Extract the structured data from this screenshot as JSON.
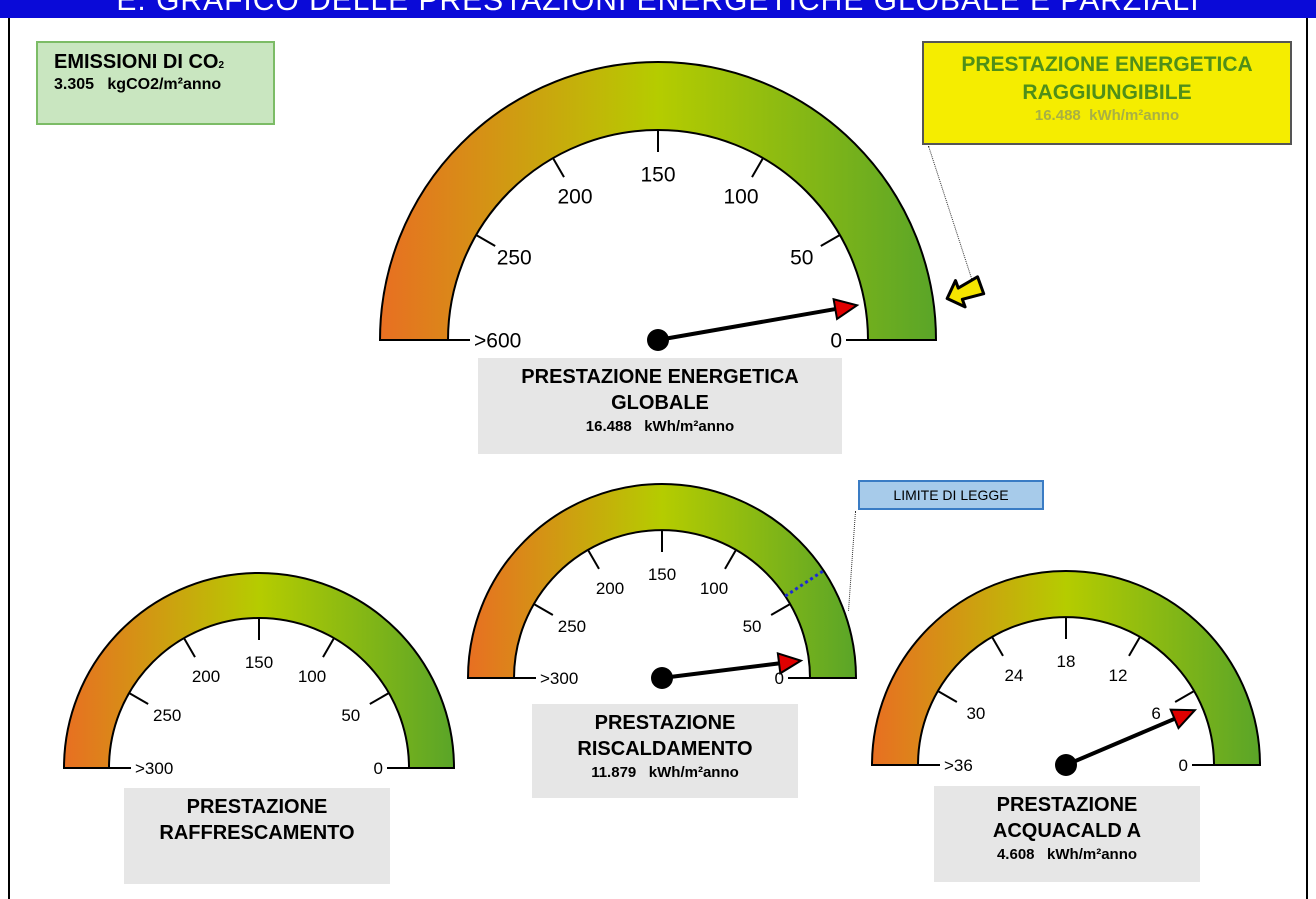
{
  "header": {
    "title": "E. GRAFICO DELLE PRESTAZIONI ENERGETICHE GLOBALE E PARZIALI"
  },
  "co2": {
    "label": "EMISSIONI DI CO",
    "subscript": "2",
    "value": "3.305",
    "unit": "kgCO2/m²anno",
    "bg_color": "#c9e6c0"
  },
  "target": {
    "label_line1": "PRESTAZIONE ENERGETICA",
    "label_line2": "RAGGIUNGIBILE",
    "value": "16.488",
    "unit": "kWh/m²anno",
    "bg_color": "#f5ed00"
  },
  "limite": {
    "label": "LIMITE DI LEGGE"
  },
  "globale": {
    "label_line1": "PRESTAZIONE ENERGETICA",
    "label_line2": "GLOBALE",
    "value": "16.488",
    "unit": "kWh/m²anno"
  },
  "riscaldamento": {
    "label_line1": "PRESTAZIONE",
    "label_line2": "RISCALDAMENTO",
    "value": "11.879",
    "unit": "kWh/m²anno"
  },
  "raffrescamento": {
    "label_line1": "PRESTAZIONE",
    "label_line2": "RAFFRESCAMENTO"
  },
  "acqua": {
    "label_line1": "PRESTAZIONE",
    "label_line2": "ACQUACALD A",
    "value": "4.608",
    "unit": "kWh/m²anno"
  },
  "colors": {
    "gauge_low": "#e86f22",
    "gauge_mid": "#b5cc00",
    "gauge_high": "#5aa528",
    "needle_tip": "#e00000",
    "limit_line": "#1d2ad6",
    "header_bg": "#0a0ad8"
  },
  "chart_data": [
    {
      "type": "gauge",
      "id": "globale",
      "scale_max": 300,
      "ticks": [
        ">600",
        "250",
        "200",
        "150",
        "100",
        "50",
        "0"
      ],
      "value": 16.488,
      "target": 16.488
    },
    {
      "type": "gauge",
      "id": "raffrescamento",
      "scale_max": 300,
      "ticks": [
        ">300",
        "250",
        "200",
        "150",
        "100",
        "50",
        "0"
      ],
      "value": null
    },
    {
      "type": "gauge",
      "id": "riscaldamento",
      "scale_max": 300,
      "ticks": [
        ">300",
        "250",
        "200",
        "150",
        "100",
        "50",
        "0"
      ],
      "value": 11.879,
      "limit": 56
    },
    {
      "type": "gauge",
      "id": "acqua",
      "scale_max": 36,
      "ticks": [
        ">36",
        "30",
        "24",
        "18",
        "12",
        "6",
        "0"
      ],
      "value": 4.608
    }
  ]
}
